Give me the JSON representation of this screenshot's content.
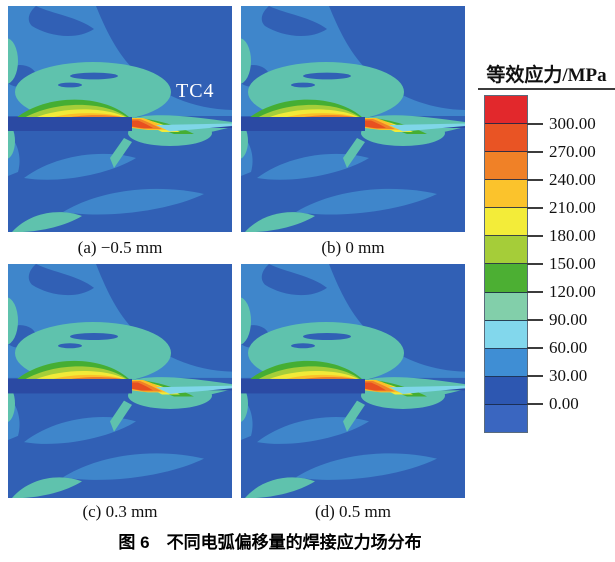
{
  "figure": {
    "caption": "图 6　不同电弧偏移量的焊接应力场分布",
    "panels": [
      {
        "label": "(a) −0.5 mm",
        "annotation": "TC4"
      },
      {
        "label": "(b) 0 mm"
      },
      {
        "label": "(c) 0.3 mm"
      },
      {
        "label": "(d) 0.5 mm"
      }
    ],
    "legend": {
      "title": "等效应力/MPa",
      "tick_labels": [
        "300.00",
        "270.00",
        "240.00",
        "210.00",
        "180.00",
        "150.00",
        "120.00",
        "90.00",
        "60.00",
        "30.00",
        "0.00"
      ],
      "colors_top_to_bottom": [
        "#e2282c",
        "#e95424",
        "#f08127",
        "#fbc32c",
        "#f3ec39",
        "#a5cd39",
        "#4caf33",
        "#82cfaa",
        "#82d7ec",
        "#3f8ed4",
        "#2d57b1",
        "#3a66c0"
      ]
    }
  },
  "chart_data": {
    "type": "heatmap",
    "title": "图 6　不同电弧偏移量的焊接应力场分布",
    "panels": [
      {
        "label": "(a) −0.5 mm",
        "arc_offset_mm": -0.5,
        "annotation": "TC4"
      },
      {
        "label": "(b) 0 mm",
        "arc_offset_mm": 0
      },
      {
        "label": "(c) 0.3 mm",
        "arc_offset_mm": 0.3
      },
      {
        "label": "(d) 0.5 mm",
        "arc_offset_mm": 0.5
      }
    ],
    "colorbar": {
      "label": "等效应力/MPa",
      "units": "MPa",
      "tick_values": [
        300,
        270,
        240,
        210,
        180,
        150,
        120,
        90,
        60,
        30,
        0
      ],
      "level_step": 30,
      "range": [
        0,
        300
      ],
      "orientation": "vertical",
      "position": "right",
      "colors_top_to_bottom": [
        "#e2282c",
        "#e95424",
        "#f08127",
        "#fbc32c",
        "#f3ec39",
        "#a5cd39",
        "#4caf33",
        "#82cfaa",
        "#82d7ec",
        "#3f8ed4",
        "#2d57b1",
        "#3a66c0"
      ]
    },
    "content_summary": "Equivalent-stress contour fields of a TC4 welded joint for four arc offsets; peak stress band (150–270 MPa, green–orange) lies along the weld interface ending at the joint step; surrounding field mostly 0–60 MPa (blues) with a 90–120 MPa teal halo above the weld line."
  }
}
